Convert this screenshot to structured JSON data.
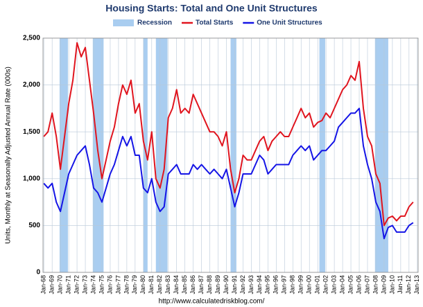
{
  "chart_data": {
    "type": "line",
    "title": "Housing Starts: Total and One Unit Structures",
    "y_label": "Units, Monthly at Seasonally Adjusted Annual Rate (000s)",
    "source": "http://www.calculatedriskblog.com/",
    "recession_label": "Recession",
    "recession_color": "#a9cdf0",
    "recessions": [
      [
        1969.9,
        1970.9
      ],
      [
        1973.9,
        1975.2
      ],
      [
        1980.0,
        1980.5
      ],
      [
        1981.5,
        1982.9
      ],
      [
        1990.5,
        1991.2
      ],
      [
        2001.2,
        2001.9
      ],
      [
        2007.9,
        2009.5
      ]
    ],
    "x": [
      1968.0,
      1968.5,
      1969.0,
      1969.5,
      1970.0,
      1970.5,
      1971.0,
      1971.5,
      1972.0,
      1972.5,
      1973.0,
      1973.5,
      1974.0,
      1974.5,
      1975.0,
      1975.5,
      1976.0,
      1976.5,
      1977.0,
      1977.5,
      1978.0,
      1978.5,
      1979.0,
      1979.5,
      1980.0,
      1980.5,
      1981.0,
      1981.5,
      1982.0,
      1982.5,
      1983.0,
      1983.5,
      1984.0,
      1984.5,
      1985.0,
      1985.5,
      1986.0,
      1986.5,
      1987.0,
      1987.5,
      1988.0,
      1988.5,
      1989.0,
      1989.5,
      1990.0,
      1990.5,
      1991.0,
      1991.5,
      1992.0,
      1992.5,
      1993.0,
      1993.5,
      1994.0,
      1994.5,
      1995.0,
      1995.5,
      1996.0,
      1996.5,
      1997.0,
      1997.5,
      1998.0,
      1998.5,
      1999.0,
      1999.5,
      2000.0,
      2000.5,
      2001.0,
      2001.5,
      2002.0,
      2002.5,
      2003.0,
      2003.5,
      2004.0,
      2004.5,
      2005.0,
      2005.5,
      2006.0,
      2006.5,
      2007.0,
      2007.5,
      2008.0,
      2008.5,
      2009.0,
      2009.5,
      2010.0,
      2010.5,
      2011.0,
      2011.5,
      2012.0,
      2012.5
    ],
    "series": [
      {
        "name": "Total Starts",
        "color": "#e0141e",
        "values": [
          1450,
          1500,
          1700,
          1450,
          1100,
          1450,
          1800,
          2050,
          2450,
          2300,
          2400,
          2050,
          1700,
          1300,
          1000,
          1200,
          1400,
          1550,
          1800,
          2000,
          1900,
          2050,
          1700,
          1800,
          1400,
          1200,
          1500,
          1000,
          900,
          1100,
          1650,
          1750,
          1950,
          1700,
          1750,
          1700,
          1900,
          1800,
          1700,
          1600,
          1500,
          1500,
          1450,
          1350,
          1500,
          1100,
          850,
          1000,
          1250,
          1200,
          1200,
          1300,
          1400,
          1450,
          1300,
          1400,
          1450,
          1500,
          1450,
          1450,
          1550,
          1650,
          1750,
          1650,
          1700,
          1550,
          1600,
          1620,
          1700,
          1650,
          1750,
          1850,
          1950,
          2000,
          2100,
          2050,
          2250,
          1750,
          1450,
          1350,
          1050,
          950,
          500,
          580,
          600,
          550,
          600,
          600,
          700,
          750
        ]
      },
      {
        "name": "One Unit Structures",
        "color": "#1414e6",
        "values": [
          950,
          900,
          950,
          750,
          650,
          850,
          1050,
          1150,
          1250,
          1300,
          1350,
          1150,
          900,
          850,
          750,
          900,
          1050,
          1150,
          1300,
          1450,
          1350,
          1450,
          1250,
          1250,
          900,
          850,
          1000,
          750,
          650,
          700,
          1050,
          1100,
          1150,
          1050,
          1050,
          1050,
          1150,
          1100,
          1150,
          1100,
          1050,
          1100,
          1050,
          1000,
          1100,
          900,
          700,
          850,
          1050,
          1050,
          1050,
          1150,
          1250,
          1200,
          1050,
          1100,
          1150,
          1150,
          1150,
          1150,
          1250,
          1300,
          1350,
          1300,
          1350,
          1200,
          1250,
          1300,
          1300,
          1350,
          1400,
          1550,
          1600,
          1650,
          1700,
          1700,
          1750,
          1350,
          1150,
          1000,
          750,
          650,
          360,
          480,
          500,
          430,
          430,
          430,
          500,
          530
        ]
      }
    ],
    "xlim": [
      1967.9,
      2013.1
    ],
    "xticks": [
      {
        "value": 1968,
        "label": "Jan-68"
      },
      {
        "value": 1969,
        "label": "Jan-69"
      },
      {
        "value": 1970,
        "label": "Jan-70"
      },
      {
        "value": 1971,
        "label": "Jan-71"
      },
      {
        "value": 1972,
        "label": "Jan-72"
      },
      {
        "value": 1973,
        "label": "Jan-73"
      },
      {
        "value": 1974,
        "label": "Jan-74"
      },
      {
        "value": 1975,
        "label": "Jan-75"
      },
      {
        "value": 1976,
        "label": "Jan-76"
      },
      {
        "value": 1977,
        "label": "Jan-77"
      },
      {
        "value": 1978,
        "label": "Jan-78"
      },
      {
        "value": 1979,
        "label": "Jan-79"
      },
      {
        "value": 1980,
        "label": "Jan-80"
      },
      {
        "value": 1981,
        "label": "Jan-81"
      },
      {
        "value": 1982,
        "label": "Jan-82"
      },
      {
        "value": 1983,
        "label": "Jan-83"
      },
      {
        "value": 1984,
        "label": "Jan-84"
      },
      {
        "value": 1985,
        "label": "Jan-85"
      },
      {
        "value": 1986,
        "label": "Jan-86"
      },
      {
        "value": 1987,
        "label": "Jan-87"
      },
      {
        "value": 1988,
        "label": "Jan-88"
      },
      {
        "value": 1989,
        "label": "Jan-89"
      },
      {
        "value": 1990,
        "label": "Jan-90"
      },
      {
        "value": 1991,
        "label": "Jan-91"
      },
      {
        "value": 1992,
        "label": "Jan-92"
      },
      {
        "value": 1993,
        "label": "Jan-93"
      },
      {
        "value": 1994,
        "label": "Jan-94"
      },
      {
        "value": 1995,
        "label": "Jan-95"
      },
      {
        "value": 1996,
        "label": "Jan-96"
      },
      {
        "value": 1997,
        "label": "Jan-97"
      },
      {
        "value": 1998,
        "label": "Jan-98"
      },
      {
        "value": 1999,
        "label": "Jan-99"
      },
      {
        "value": 2000,
        "label": "Jan-00"
      },
      {
        "value": 2001,
        "label": "Jan-01"
      },
      {
        "value": 2002,
        "label": "Jan-02"
      },
      {
        "value": 2003,
        "label": "Jan-03"
      },
      {
        "value": 2004,
        "label": "Jan-04"
      },
      {
        "value": 2005,
        "label": "Jan-05"
      },
      {
        "value": 2006,
        "label": "Jan-06"
      },
      {
        "value": 2007,
        "label": "Jan-07"
      },
      {
        "value": 2008,
        "label": "Jan-08"
      },
      {
        "value": 2009,
        "label": "Jan-09"
      },
      {
        "value": 2010,
        "label": "Jan-10"
      },
      {
        "value": 2011,
        "label": "Jan-11"
      },
      {
        "value": 2012,
        "label": "Jan-12"
      },
      {
        "value": 2013,
        "label": "Jan-13"
      }
    ],
    "ylim": [
      0,
      2500
    ],
    "yticks": [
      0,
      500,
      {
        "value": 1000,
        "label": "1,000"
      },
      {
        "value": 1500,
        "label": "1,500"
      },
      {
        "value": 2000,
        "label": "2,000"
      },
      {
        "value": 2500,
        "label": "2,500"
      }
    ],
    "grid": true
  }
}
